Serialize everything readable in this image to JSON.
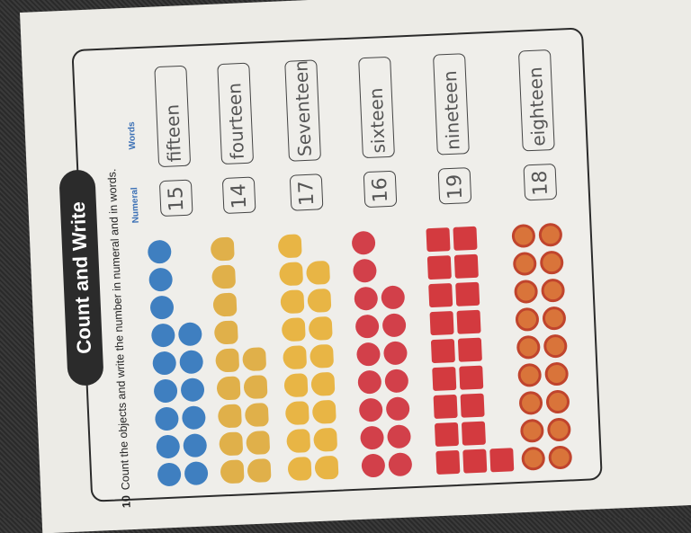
{
  "worksheet": {
    "title": "Count and Write",
    "question_number": "10",
    "instruction": "Count the objects and write the number in numeral and in words.",
    "header_numeral": "Numeral",
    "header_words": "Words",
    "rows": [
      {
        "object": "globe",
        "count": 15,
        "color": "#3f7fc0",
        "numeral": "15",
        "words": "fifteen"
      },
      {
        "object": "trophy",
        "count": 14,
        "color": "#e0b04a",
        "numeral": "14",
        "words": "fourteen"
      },
      {
        "object": "lightbulb",
        "count": 17,
        "color": "#e8b545",
        "numeral": "17",
        "words": "Seventeen"
      },
      {
        "object": "pitcher",
        "count": 16,
        "color": "#d2404a",
        "numeral": "16",
        "words": "sixteen"
      },
      {
        "object": "book",
        "count": 19,
        "color": "#d33a3f",
        "numeral": "19",
        "words": "nineteen"
      },
      {
        "object": "medal",
        "count": 18,
        "color": "#d9743a",
        "numeral": "18",
        "words": "eighteen"
      }
    ]
  }
}
